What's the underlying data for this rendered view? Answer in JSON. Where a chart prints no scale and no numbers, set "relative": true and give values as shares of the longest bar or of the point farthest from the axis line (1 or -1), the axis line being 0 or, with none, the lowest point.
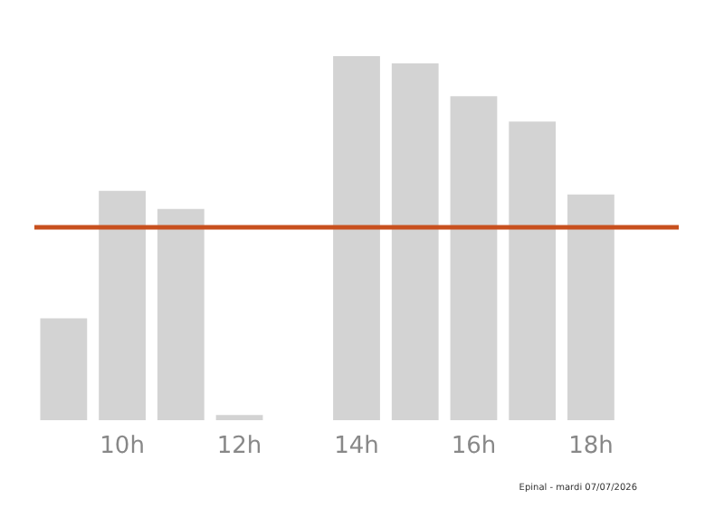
{
  "chart_data": {
    "type": "bar",
    "relative": true,
    "categories": [
      null,
      "10h",
      null,
      "12h",
      null,
      "14h",
      null,
      "16h",
      null,
      "18h",
      null
    ],
    "series": [
      {
        "color": "#d3d3d3",
        "values": [
          0.28,
          0.63,
          0.58,
          0.014,
          0,
          1,
          0.98,
          0.89,
          0.82,
          0.62,
          0
        ]
      }
    ],
    "ref_lines": [
      {
        "axis": "y",
        "value": 0.53,
        "color": "#c8501e"
      }
    ],
    "annotations": [
      "Epinal - mardi 07/07/2026"
    ]
  }
}
